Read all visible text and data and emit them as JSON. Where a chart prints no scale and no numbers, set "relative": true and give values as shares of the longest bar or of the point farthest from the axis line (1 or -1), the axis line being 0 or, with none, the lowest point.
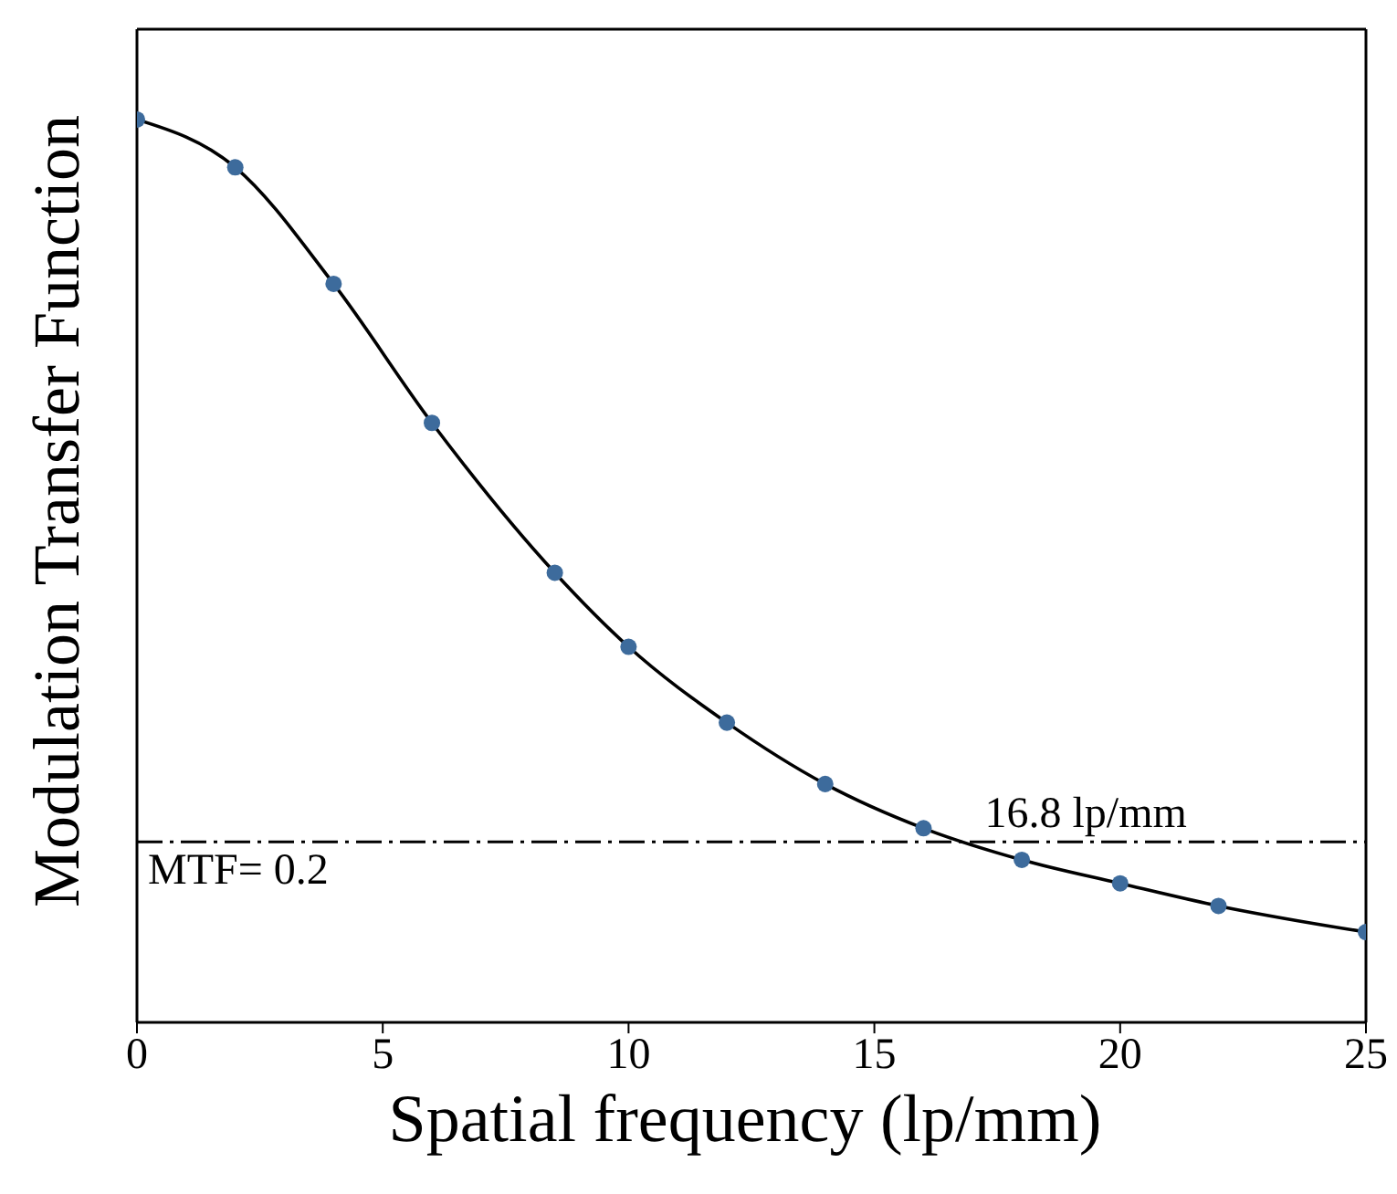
{
  "chart_data": {
    "type": "line",
    "relative": true,
    "xlabel": "Spatial frequency (lp/mm)",
    "ylabel": "Modulation Transfer Function",
    "x": [
      0,
      2,
      4,
      6,
      8.5,
      10,
      12,
      14,
      16,
      18,
      20,
      22,
      25
    ],
    "series": [
      {
        "type": "line",
        "color": "#000000",
        "marker": "none",
        "values": [
          1.0,
          0.947,
          0.818,
          0.664,
          0.498,
          0.416,
          0.332,
          0.264,
          0.215,
          0.18,
          0.154,
          0.129,
          0.1
        ]
      },
      {
        "type": "scatter",
        "color": "#3d6b9c",
        "marker": "circle",
        "values": [
          1.0,
          0.947,
          0.818,
          0.664,
          0.498,
          0.416,
          0.332,
          0.264,
          0.215,
          0.18,
          0.154,
          0.129,
          0.1
        ]
      }
    ],
    "xlim": [
      0,
      25
    ],
    "xticks": [
      0,
      5,
      10,
      15,
      20,
      25
    ],
    "ref_lines": [
      {
        "axis": "y",
        "value": 0.2,
        "label": "MTF= 0.2",
        "color": "#000000",
        "line_style": "dashed"
      }
    ],
    "annotations": [
      {
        "text": "16.8 lp/mm",
        "x": 16.8,
        "y": 0.2
      }
    ],
    "grid": false,
    "legend": false
  }
}
